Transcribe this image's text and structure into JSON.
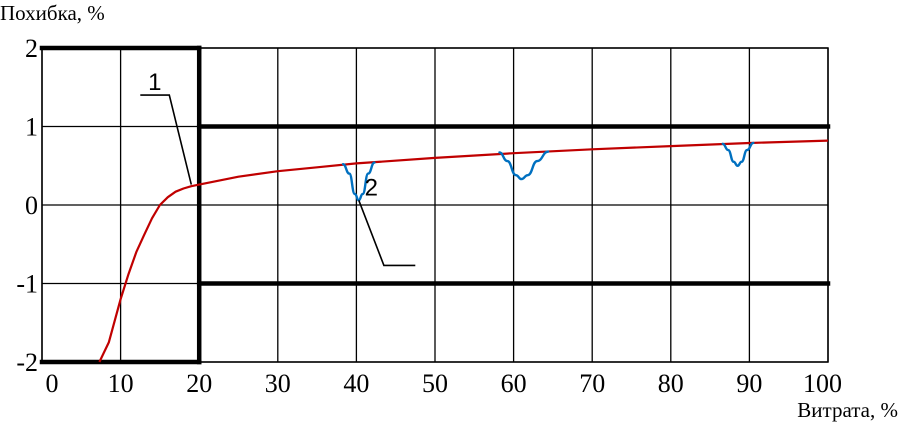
{
  "chart_data": {
    "type": "line",
    "ylabel": "Похибка, %",
    "xlabel": "Витрата, %",
    "xlim": [
      0,
      100
    ],
    "ylim": [
      -2,
      2
    ],
    "x_ticks": [
      0,
      10,
      20,
      30,
      40,
      50,
      60,
      70,
      80,
      90,
      100
    ],
    "y_ticks": [
      2,
      1,
      0,
      -1,
      -2
    ],
    "grid": true,
    "series": [
      {
        "name": "1",
        "color": "#c00000",
        "points": [
          [
            7.3,
            -2.0
          ],
          [
            8.5,
            -1.75
          ],
          [
            10,
            -1.2
          ],
          [
            11,
            -0.88
          ],
          [
            12,
            -0.6
          ],
          [
            13,
            -0.38
          ],
          [
            14,
            -0.17
          ],
          [
            15,
            0.0
          ],
          [
            16,
            0.1
          ],
          [
            17,
            0.17
          ],
          [
            18,
            0.21
          ],
          [
            19,
            0.24
          ],
          [
            20,
            0.26
          ],
          [
            25,
            0.36
          ],
          [
            30,
            0.43
          ],
          [
            35,
            0.48
          ],
          [
            40,
            0.53
          ],
          [
            50,
            0.6
          ],
          [
            60,
            0.66
          ],
          [
            70,
            0.71
          ],
          [
            80,
            0.75
          ],
          [
            90,
            0.79
          ],
          [
            100,
            0.82
          ]
        ]
      },
      {
        "name": "2",
        "color": "#0070c0",
        "dips": [
          [
            [
              38.3,
              0.52
            ],
            [
              39.1,
              0.4
            ],
            [
              39.8,
              0.14
            ],
            [
              40.3,
              0.06
            ],
            [
              40.8,
              0.14
            ],
            [
              41.5,
              0.4
            ],
            [
              42.3,
              0.54
            ]
          ],
          [
            [
              58.2,
              0.67
            ],
            [
              59.2,
              0.56
            ],
            [
              60.3,
              0.38
            ],
            [
              61.0,
              0.33
            ],
            [
              61.8,
              0.38
            ],
            [
              63.0,
              0.56
            ],
            [
              64.4,
              0.68
            ]
          ],
          [
            [
              86.6,
              0.78
            ],
            [
              87.3,
              0.7
            ],
            [
              88.0,
              0.55
            ],
            [
              88.5,
              0.5
            ],
            [
              89.0,
              0.55
            ],
            [
              89.7,
              0.7
            ],
            [
              90.5,
              0.79
            ]
          ]
        ]
      }
    ],
    "limit_lines": [
      {
        "x": [
          0,
          20
        ],
        "y": 2
      },
      {
        "x": [
          0,
          20
        ],
        "y": -2
      },
      {
        "x": [
          20,
          100
        ],
        "y": 1
      },
      {
        "x": [
          20,
          100
        ],
        "y": -1
      },
      {
        "x": 20,
        "y": [
          -2,
          2
        ]
      }
    ],
    "annotations": [
      {
        "text": "1",
        "points": [
          [
            12.5,
            1.4
          ],
          [
            16.2,
            1.4
          ],
          [
            19,
            0.26
          ]
        ]
      },
      {
        "text": "2",
        "points": [
          [
            40.3,
            0.06
          ],
          [
            43.5,
            -0.77
          ],
          [
            47.5,
            -0.77
          ]
        ]
      }
    ]
  }
}
